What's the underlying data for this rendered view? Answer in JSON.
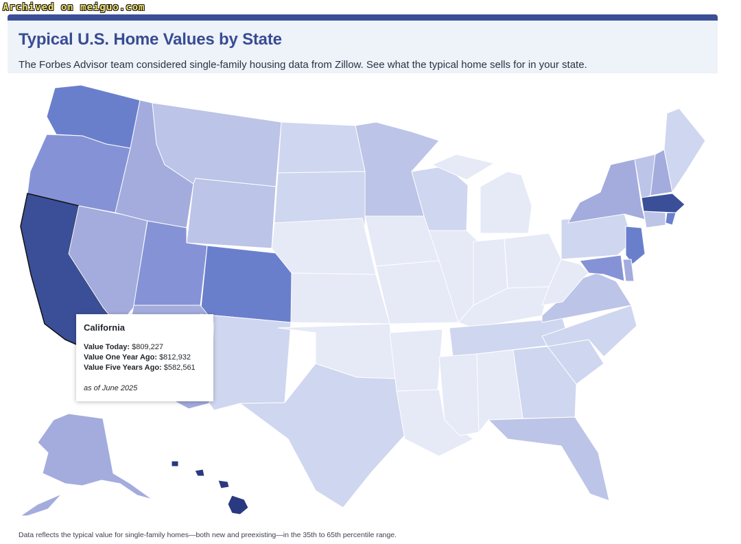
{
  "archive_label": "Archived on meiguo.com",
  "header": {
    "title": "Typical U.S. Home Values by State",
    "subtitle": "The Forbes Advisor team considered single-family housing data from Zillow. See what the typical home sells for in your state."
  },
  "tooltip": {
    "state": "California",
    "today_label": "Value Today:",
    "today_value": "$809,227",
    "one_year_label": "Value One Year Ago:",
    "one_year_value": "$812,932",
    "five_year_label": "Value Five Years Ago:",
    "five_year_value": "$582,561",
    "as_of": "as of June 2025"
  },
  "footnote": "Data reflects the typical value for single-family homes—both new and preexisting—in the 35th to 65th percentile range.",
  "colors": {
    "highest": "#2a3a80",
    "very_high": "#3b4f98",
    "high": "#6a7fcc",
    "mid_high": "#8593d6",
    "mid": "#a3acdd",
    "mid_low": "#bcc4e7",
    "low": "#cfd6ef",
    "lowest": "#e6e9f6",
    "border": "#ffffff"
  },
  "chart_data": {
    "type": "choropleth",
    "title": "Typical U.S. Home Values by State",
    "metric": "Typical single-family home value",
    "highlighted_state": "California",
    "states": [
      {
        "id": "WA",
        "name": "Washington",
        "tier": "high"
      },
      {
        "id": "OR",
        "name": "Oregon",
        "tier": "mid_high"
      },
      {
        "id": "CA",
        "name": "California",
        "tier": "very_high"
      },
      {
        "id": "NV",
        "name": "Nevada",
        "tier": "mid"
      },
      {
        "id": "ID",
        "name": "Idaho",
        "tier": "mid"
      },
      {
        "id": "MT",
        "name": "Montana",
        "tier": "mid_low"
      },
      {
        "id": "WY",
        "name": "Wyoming",
        "tier": "mid_low"
      },
      {
        "id": "UT",
        "name": "Utah",
        "tier": "mid_high"
      },
      {
        "id": "CO",
        "name": "Colorado",
        "tier": "high"
      },
      {
        "id": "AZ",
        "name": "Arizona",
        "tier": "mid"
      },
      {
        "id": "NM",
        "name": "New Mexico",
        "tier": "low"
      },
      {
        "id": "ND",
        "name": "North Dakota",
        "tier": "low"
      },
      {
        "id": "SD",
        "name": "South Dakota",
        "tier": "low"
      },
      {
        "id": "NE",
        "name": "Nebraska",
        "tier": "lowest"
      },
      {
        "id": "KS",
        "name": "Kansas",
        "tier": "lowest"
      },
      {
        "id": "OK",
        "name": "Oklahoma",
        "tier": "lowest"
      },
      {
        "id": "TX",
        "name": "Texas",
        "tier": "low"
      },
      {
        "id": "MN",
        "name": "Minnesota",
        "tier": "mid_low"
      },
      {
        "id": "IA",
        "name": "Iowa",
        "tier": "lowest"
      },
      {
        "id": "MO",
        "name": "Missouri",
        "tier": "lowest"
      },
      {
        "id": "AR",
        "name": "Arkansas",
        "tier": "lowest"
      },
      {
        "id": "LA",
        "name": "Louisiana",
        "tier": "lowest"
      },
      {
        "id": "WI",
        "name": "Wisconsin",
        "tier": "low"
      },
      {
        "id": "IL",
        "name": "Illinois",
        "tier": "lowest"
      },
      {
        "id": "MI",
        "name": "Michigan",
        "tier": "lowest"
      },
      {
        "id": "IN",
        "name": "Indiana",
        "tier": "lowest"
      },
      {
        "id": "OH",
        "name": "Ohio",
        "tier": "lowest"
      },
      {
        "id": "KY",
        "name": "Kentucky",
        "tier": "lowest"
      },
      {
        "id": "TN",
        "name": "Tennessee",
        "tier": "low"
      },
      {
        "id": "MS",
        "name": "Mississippi",
        "tier": "lowest"
      },
      {
        "id": "AL",
        "name": "Alabama",
        "tier": "lowest"
      },
      {
        "id": "GA",
        "name": "Georgia",
        "tier": "low"
      },
      {
        "id": "FL",
        "name": "Florida",
        "tier": "mid_low"
      },
      {
        "id": "SC",
        "name": "South Carolina",
        "tier": "low"
      },
      {
        "id": "NC",
        "name": "North Carolina",
        "tier": "low"
      },
      {
        "id": "VA",
        "name": "Virginia",
        "tier": "mid_low"
      },
      {
        "id": "WV",
        "name": "West Virginia",
        "tier": "lowest"
      },
      {
        "id": "PA",
        "name": "Pennsylvania",
        "tier": "low"
      },
      {
        "id": "NY",
        "name": "New York",
        "tier": "mid"
      },
      {
        "id": "VT",
        "name": "Vermont",
        "tier": "mid_low"
      },
      {
        "id": "NH",
        "name": "New Hampshire",
        "tier": "mid"
      },
      {
        "id": "ME",
        "name": "Maine",
        "tier": "low"
      },
      {
        "id": "MA",
        "name": "Massachusetts",
        "tier": "very_high"
      },
      {
        "id": "RI",
        "name": "Rhode Island",
        "tier": "high"
      },
      {
        "id": "CT",
        "name": "Connecticut",
        "tier": "mid_low"
      },
      {
        "id": "NJ",
        "name": "New Jersey",
        "tier": "high"
      },
      {
        "id": "DE",
        "name": "Delaware",
        "tier": "mid"
      },
      {
        "id": "MD",
        "name": "Maryland",
        "tier": "mid_high"
      },
      {
        "id": "AK",
        "name": "Alaska",
        "tier": "mid"
      },
      {
        "id": "HI",
        "name": "Hawaii",
        "tier": "highest"
      }
    ]
  }
}
